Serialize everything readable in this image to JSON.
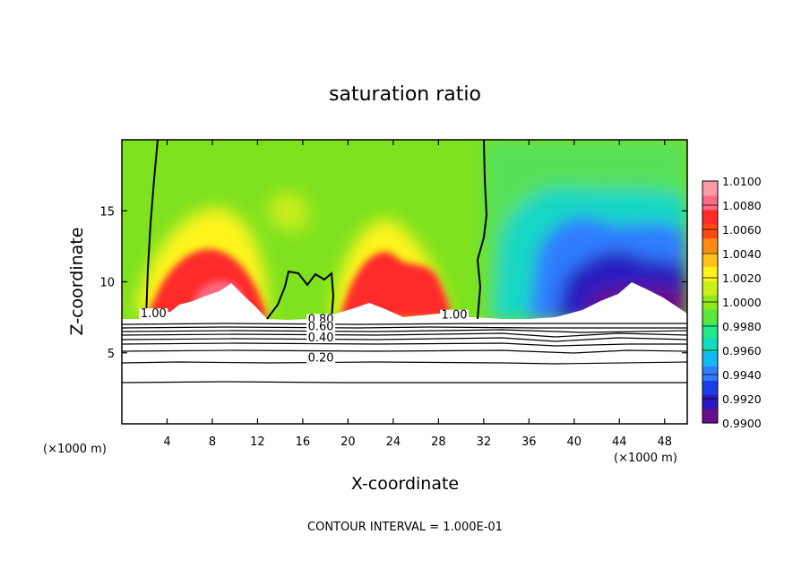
{
  "chart_data": {
    "type": "heatmap",
    "title": "saturation ratio",
    "xlabel": "X-coordinate",
    "ylabel": "Z-coordinate",
    "x_unit_label": "(×1000 m)",
    "z_unit_label": "(×1000 m)",
    "xlim": [
      0,
      50
    ],
    "ylim": [
      0,
      20
    ],
    "x_ticks": [
      4,
      8,
      12,
      16,
      20,
      24,
      28,
      32,
      36,
      40,
      44,
      48
    ],
    "y_ticks": [
      5,
      10,
      15
    ],
    "colorbar": {
      "min": 0.99,
      "max": 1.01,
      "step": 0.001,
      "labels": [
        "1.0100",
        "1.0080",
        "1.0060",
        "1.0040",
        "1.0020",
        "1.0000",
        "0.9980",
        "0.9960",
        "0.9940",
        "0.9920",
        "0.9900"
      ],
      "palette": [
        "#6a0d8a",
        "#2a1ac0",
        "#1a3fe6",
        "#2f7dff",
        "#14b8f0",
        "#12dcc0",
        "#22e888",
        "#5ae63a",
        "#90e81a",
        "#cdf01a",
        "#fff41a",
        "#ffc21a",
        "#ff8a14",
        "#ff4a14",
        "#ff2a2a",
        "#ff6a82",
        "#ff9aa8"
      ]
    },
    "line_contours": [
      {
        "label": "1.00",
        "x": 2.8,
        "z": 7.5
      },
      {
        "label": "0.80",
        "x": 17.6,
        "z": 7.1
      },
      {
        "label": "0.60",
        "x": 17.6,
        "z": 6.6
      },
      {
        "label": "0.40",
        "x": 17.6,
        "z": 5.8
      },
      {
        "label": "0.20",
        "x": 17.6,
        "z": 4.4
      },
      {
        "label": "1.00",
        "x": 29.4,
        "z": 7.4
      }
    ],
    "contour_interval_text": "CONTOUR INTERVAL = 1.000E-01"
  }
}
